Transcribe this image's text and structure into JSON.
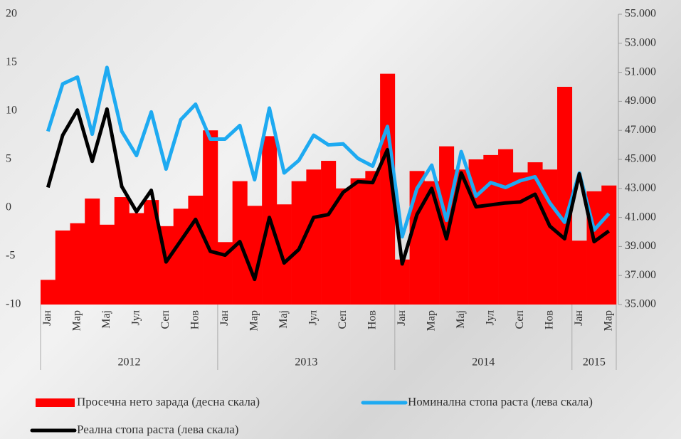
{
  "chart_data": {
    "type": "bar-line",
    "categories": [
      "Јан",
      null,
      "Мар",
      null,
      "Мај",
      null,
      "Јул",
      null,
      "Сеп",
      null,
      "Нов",
      null,
      "Јан",
      null,
      "Мар",
      null,
      "Мај",
      null,
      "Јул",
      null,
      "Сеп",
      null,
      "Нов",
      null,
      "Јан",
      null,
      "Мар",
      null,
      "Мај",
      null,
      "Јул",
      null,
      "Сеп",
      null,
      "Нов",
      null,
      "Јан",
      null,
      "Мар"
    ],
    "years": [
      "2012",
      "2013",
      "2014",
      "2015"
    ],
    "series": [
      {
        "name": "Просечна нето зарада (десна скала)",
        "type": "bar",
        "axis": "y2",
        "color": "#ff0000",
        "values": [
          36700,
          40100,
          40600,
          42300,
          40500,
          42400,
          41300,
          42200,
          40400,
          41600,
          42500,
          47000,
          39300,
          43500,
          41800,
          46600,
          41900,
          43500,
          44300,
          44900,
          43000,
          43700,
          44200,
          50900,
          38100,
          44200,
          43500,
          45900,
          44300,
          45000,
          45300,
          45700,
          44100,
          44800,
          44300,
          50000,
          39400,
          42800,
          43200
        ]
      },
      {
        "name": "Номинална стопа раста (лева скала)",
        "type": "line",
        "color": "#1eaaf1",
        "values": [
          7.9,
          12.8,
          13.5,
          7.6,
          14.5,
          7.9,
          5.4,
          9.9,
          4.0,
          9.1,
          10.7,
          7.1,
          7.1,
          8.5,
          2.9,
          10.3,
          3.6,
          4.9,
          7.5,
          6.5,
          6.6,
          5.1,
          4.3,
          8.4,
          -3.0,
          2.0,
          4.4,
          -1.3,
          5.8,
          1.2,
          2.6,
          2.1,
          2.8,
          3.2,
          0.5,
          -1.5,
          3.6,
          -2.3,
          -0.6
        ]
      },
      {
        "name": "Реална стопа раста (лева скала)",
        "type": "line",
        "color": "#000000",
        "values": [
          2.1,
          7.5,
          10.1,
          4.8,
          10.2,
          2.2,
          -0.4,
          1.8,
          -5.6,
          -3.4,
          -1.2,
          -4.5,
          -4.9,
          -3.5,
          -7.4,
          -1.0,
          -5.7,
          -4.3,
          -1.0,
          -0.7,
          1.6,
          2.7,
          2.6,
          6.0,
          -5.8,
          -0.7,
          2.0,
          -3.2,
          3.6,
          0.1,
          0.3,
          0.5,
          0.6,
          1.4,
          -1.9,
          -3.2,
          3.5,
          -3.5,
          -2.4
        ]
      }
    ],
    "ylim": [
      -10,
      20
    ],
    "yticks": [
      -10,
      -5,
      0,
      5,
      10,
      15,
      20
    ],
    "y2lim": [
      35000,
      55000
    ],
    "y2ticks": [
      {
        "value": 35000,
        "label": "35.000"
      },
      {
        "value": 37000,
        "label": "37.000"
      },
      {
        "value": 39000,
        "label": "39.000"
      },
      {
        "value": 41000,
        "label": "41.000"
      },
      {
        "value": 43000,
        "label": "43.000"
      },
      {
        "value": 45000,
        "label": "45.000"
      },
      {
        "value": 47000,
        "label": "47.000"
      },
      {
        "value": 49000,
        "label": "49.000"
      },
      {
        "value": 51000,
        "label": "51.000"
      },
      {
        "value": 53000,
        "label": "53.000"
      },
      {
        "value": 55000,
        "label": "55.000"
      }
    ]
  }
}
